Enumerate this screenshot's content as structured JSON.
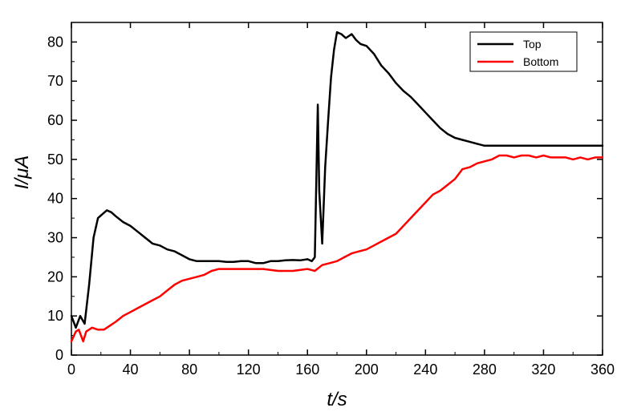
{
  "chart_data": {
    "type": "line",
    "xlabel": "t/s",
    "ylabel": "I/μA",
    "xlim": [
      0,
      360
    ],
    "ylim": [
      0,
      85
    ],
    "x_ticks": [
      0,
      40,
      80,
      120,
      160,
      200,
      240,
      280,
      320,
      360
    ],
    "y_ticks": [
      0,
      10,
      20,
      30,
      40,
      50,
      60,
      70,
      80
    ],
    "grid": false,
    "legend_position": "top-right",
    "series": [
      {
        "name": "Top",
        "color": "#000000",
        "x": [
          0,
          3,
          6,
          9,
          12,
          15,
          18,
          21,
          24,
          27,
          30,
          35,
          40,
          45,
          50,
          55,
          60,
          65,
          70,
          75,
          80,
          85,
          90,
          95,
          100,
          105,
          110,
          115,
          120,
          125,
          130,
          135,
          140,
          145,
          150,
          155,
          160,
          163,
          165,
          167,
          168,
          170,
          172,
          174,
          176,
          178,
          180,
          183,
          186,
          190,
          193,
          196,
          200,
          205,
          210,
          215,
          220,
          225,
          230,
          235,
          240,
          245,
          250,
          255,
          260,
          265,
          270,
          275,
          280,
          285,
          290,
          295,
          300,
          305,
          310,
          315,
          320,
          325,
          330,
          335,
          340,
          345,
          350,
          355,
          360
        ],
        "values": [
          10,
          7,
          10,
          8,
          18,
          30,
          35,
          36,
          37,
          36.5,
          35.5,
          34,
          33,
          31.5,
          30,
          28.5,
          28,
          27,
          26.5,
          25.5,
          24.5,
          24,
          24,
          24,
          24,
          23.8,
          23.8,
          24,
          24,
          23.5,
          23.5,
          24,
          24,
          24.2,
          24.3,
          24.2,
          24.5,
          24,
          25,
          64,
          42,
          28.5,
          48,
          60,
          71,
          78,
          82.5,
          82,
          81,
          82,
          80.5,
          79.5,
          79,
          77,
          74,
          72,
          69.5,
          67.5,
          66,
          64,
          62,
          60,
          58,
          56.5,
          55.5,
          55,
          54.5,
          54,
          53.5,
          53.5,
          53.5,
          53.5,
          53.5,
          53.5,
          53.5,
          53.5,
          53.5,
          53.5,
          53.5,
          53.5,
          53.5,
          53.5,
          53.5,
          53.5,
          53.5
        ]
      },
      {
        "name": "Bottom",
        "color": "#ff0000",
        "x": [
          0,
          3,
          5,
          8,
          10,
          14,
          18,
          22,
          26,
          30,
          35,
          40,
          45,
          50,
          55,
          60,
          65,
          70,
          75,
          80,
          85,
          90,
          95,
          100,
          110,
          120,
          130,
          140,
          150,
          160,
          165,
          170,
          175,
          180,
          185,
          190,
          195,
          200,
          205,
          210,
          215,
          220,
          225,
          230,
          235,
          240,
          245,
          250,
          255,
          260,
          265,
          270,
          275,
          280,
          285,
          290,
          295,
          300,
          305,
          310,
          315,
          320,
          325,
          330,
          335,
          340,
          345,
          350,
          355,
          360
        ],
        "values": [
          3.5,
          6,
          6.5,
          3.5,
          6,
          7,
          6.5,
          6.5,
          7.5,
          8.5,
          10,
          11,
          12,
          13,
          14,
          15,
          16.5,
          18,
          19,
          19.5,
          20,
          20.5,
          21.5,
          22,
          22,
          22,
          22,
          21.5,
          21.5,
          22,
          21.5,
          23,
          23.5,
          24,
          25,
          26,
          26.5,
          27,
          28,
          29,
          30,
          31,
          33,
          35,
          37,
          39,
          41,
          42,
          43.5,
          45,
          47.5,
          48,
          49,
          49.5,
          50,
          51,
          51,
          50.5,
          51,
          51,
          50.5,
          51,
          50.5,
          50.5,
          50.5,
          50,
          50.5,
          50,
          50.5,
          50.5
        ]
      }
    ]
  }
}
